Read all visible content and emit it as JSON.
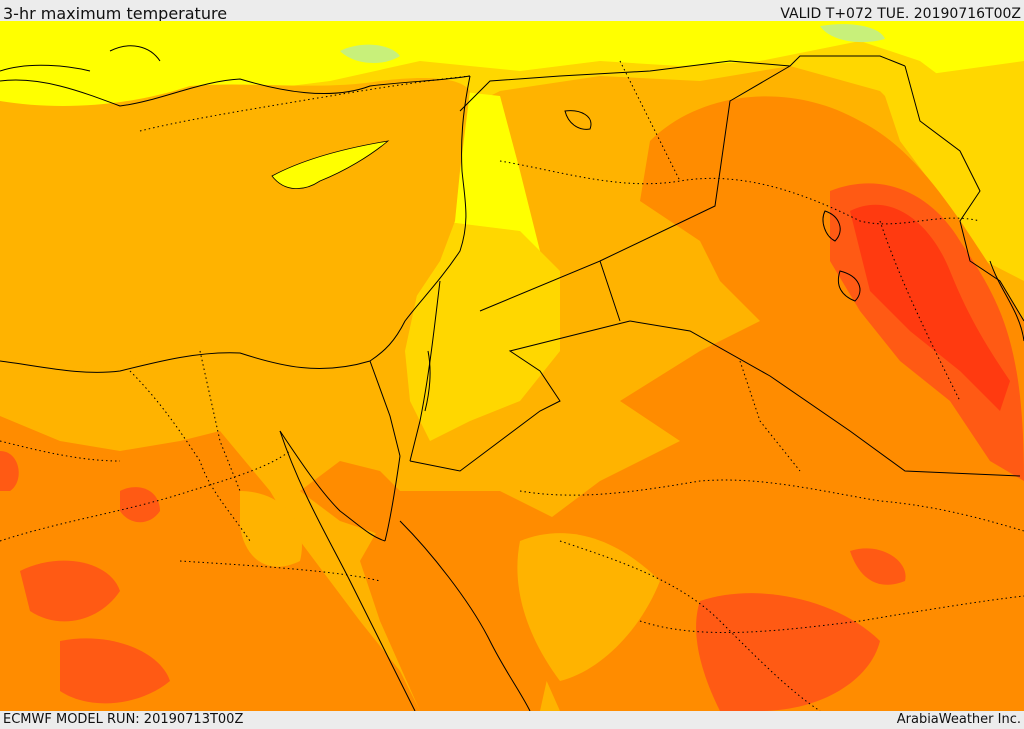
{
  "header": {
    "title": "3-hr maximum temperature",
    "valid": "VALID T+072 TUE. 20190716T00Z"
  },
  "footer": {
    "model_run": "ECMWF MODEL RUN: 20190713T00Z",
    "credit": "ArabiaWeather Inc."
  },
  "map": {
    "palette": {
      "pale_green": "#c8f07a",
      "yellow": "#ffff00",
      "gold": "#ffd700",
      "light_orange": "#ffb300",
      "orange": "#ff8c00",
      "red_orange": "#ff5a14",
      "red": "#ff3a10"
    },
    "background_color": "#ffb300",
    "border_color": "#000000"
  }
}
